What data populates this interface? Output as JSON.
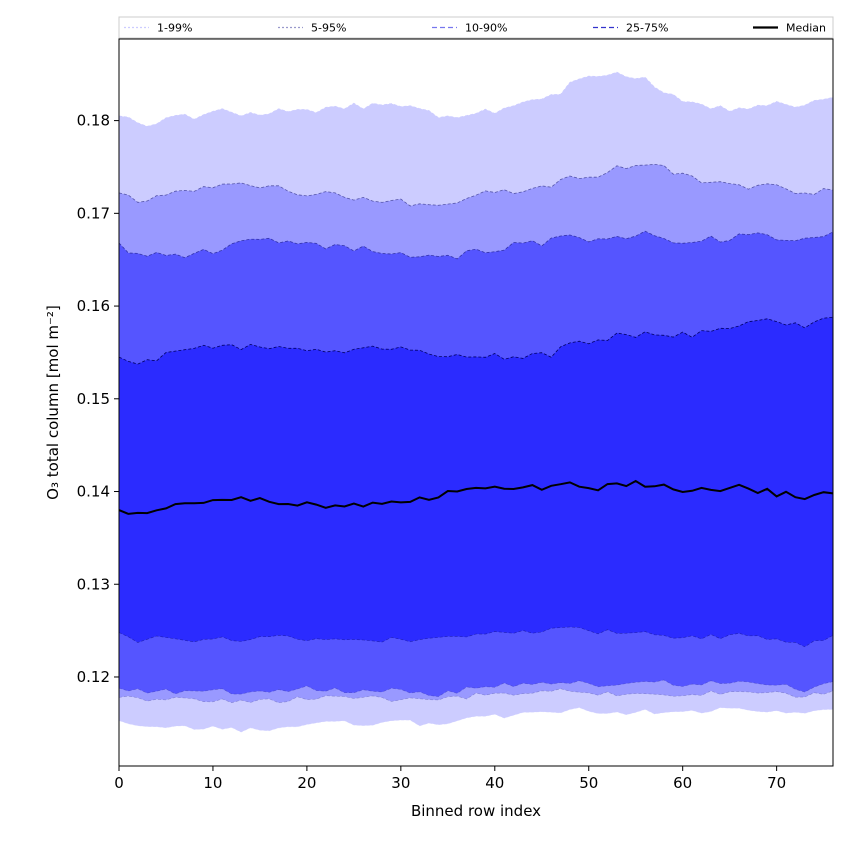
{
  "chart_data": {
    "type": "area",
    "title": "",
    "xlabel": "Binned row index",
    "ylabel": "O₃ total column [mol m⁻²]",
    "xlim": [
      0,
      76
    ],
    "ylim": [
      0.1104,
      0.1888
    ],
    "xticks": [
      0,
      10,
      20,
      30,
      40,
      50,
      60,
      70
    ],
    "yticks": [
      0.12,
      0.13,
      0.14,
      0.15,
      0.16,
      0.17,
      0.18
    ],
    "xtick_labels": [
      "0",
      "10",
      "20",
      "30",
      "40",
      "50",
      "60",
      "70"
    ],
    "ytick_labels": [
      "0.12",
      "0.13",
      "0.14",
      "0.15",
      "0.16",
      "0.17",
      "0.18"
    ],
    "grid": false,
    "legend_position": "top",
    "x_knots": [
      0,
      2,
      5,
      8,
      10,
      15,
      20,
      25,
      30,
      34,
      38,
      42,
      46,
      48,
      50,
      53,
      57,
      60,
      66,
      70,
      73,
      76
    ],
    "bands": [
      {
        "name": "1-99%",
        "color": "#ccccff",
        "line_color": "#ccccff",
        "lower": [
          0.1153,
          0.1145,
          0.1145,
          0.1145,
          0.1145,
          0.1142,
          0.115,
          0.115,
          0.1152,
          0.1148,
          0.1158,
          0.1158,
          0.1162,
          0.1165,
          0.1163,
          0.1162,
          0.1163,
          0.1162,
          0.1165,
          0.1162,
          0.116,
          0.1165
        ],
        "upper": [
          0.1805,
          0.1795,
          0.18,
          0.1805,
          0.181,
          0.1808,
          0.181,
          0.1815,
          0.1818,
          0.1805,
          0.1808,
          0.1815,
          0.1825,
          0.1838,
          0.1845,
          0.1852,
          0.184,
          0.1818,
          0.1812,
          0.1818,
          0.1815,
          0.1825
        ]
      },
      {
        "name": "5-95%",
        "color": "#9999ff",
        "line_color": "#5555aa",
        "lower": [
          0.1178,
          0.1175,
          0.1178,
          0.1175,
          0.1175,
          0.1173,
          0.1178,
          0.1178,
          0.1175,
          0.1175,
          0.118,
          0.118,
          0.1185,
          0.1185,
          0.118,
          0.1182,
          0.1182,
          0.118,
          0.1185,
          0.1182,
          0.1178,
          0.1185
        ],
        "upper": [
          0.1722,
          0.1715,
          0.172,
          0.1725,
          0.1728,
          0.173,
          0.1722,
          0.1718,
          0.1712,
          0.1705,
          0.172,
          0.1725,
          0.1728,
          0.1738,
          0.1738,
          0.1748,
          0.1752,
          0.174,
          0.1728,
          0.173,
          0.1718,
          0.1725
        ]
      },
      {
        "name": "10-90%",
        "color": "#5555ff",
        "line_color": "#3333aa",
        "lower": [
          0.1188,
          0.1185,
          0.1185,
          0.1183,
          0.1185,
          0.1183,
          0.1188,
          0.1185,
          0.1185,
          0.118,
          0.119,
          0.1192,
          0.1192,
          0.1195,
          0.1192,
          0.1192,
          0.1195,
          0.1192,
          0.1195,
          0.1192,
          0.1185,
          0.1195
        ],
        "upper": [
          0.1668,
          0.1653,
          0.1658,
          0.1655,
          0.166,
          0.1672,
          0.1668,
          0.1662,
          0.1658,
          0.165,
          0.1658,
          0.1665,
          0.167,
          0.1678,
          0.1672,
          0.1675,
          0.1678,
          0.1668,
          0.1675,
          0.1675,
          0.167,
          0.168
        ]
      },
      {
        "name": "25-75%",
        "color": "#2b2bff",
        "line_color": "#000066",
        "lower": [
          0.1248,
          0.124,
          0.1242,
          0.1238,
          0.124,
          0.1242,
          0.1242,
          0.124,
          0.124,
          0.124,
          0.1248,
          0.1248,
          0.125,
          0.1255,
          0.1248,
          0.1248,
          0.1248,
          0.1242,
          0.1245,
          0.1242,
          0.1235,
          0.1245
        ],
        "upper": [
          0.1545,
          0.1538,
          0.1548,
          0.1552,
          0.1558,
          0.1555,
          0.155,
          0.1552,
          0.1555,
          0.1545,
          0.1548,
          0.1545,
          0.1548,
          0.156,
          0.156,
          0.1568,
          0.1572,
          0.1568,
          0.1578,
          0.1585,
          0.158,
          0.1588
        ]
      }
    ],
    "median": {
      "name": "Median",
      "color": "#000000",
      "values": [
        0.138,
        0.1375,
        0.1382,
        0.1385,
        0.139,
        0.1392,
        0.1385,
        0.1385,
        0.139,
        0.1395,
        0.1405,
        0.1405,
        0.1403,
        0.141,
        0.1403,
        0.1408,
        0.1408,
        0.14,
        0.1405,
        0.1398,
        0.1395,
        0.1398
      ]
    },
    "legend": [
      {
        "label": "1-99%",
        "color": "#ccccff",
        "dash": "2,2"
      },
      {
        "label": "5-95%",
        "color": "#9999cc",
        "dash": "2,2"
      },
      {
        "label": "10-90%",
        "color": "#7777ee",
        "dash": "5,3"
      },
      {
        "label": "25-75%",
        "color": "#3333cc",
        "dash": "5,3"
      },
      {
        "label": "Median",
        "color": "#000000",
        "dash": ""
      }
    ]
  }
}
